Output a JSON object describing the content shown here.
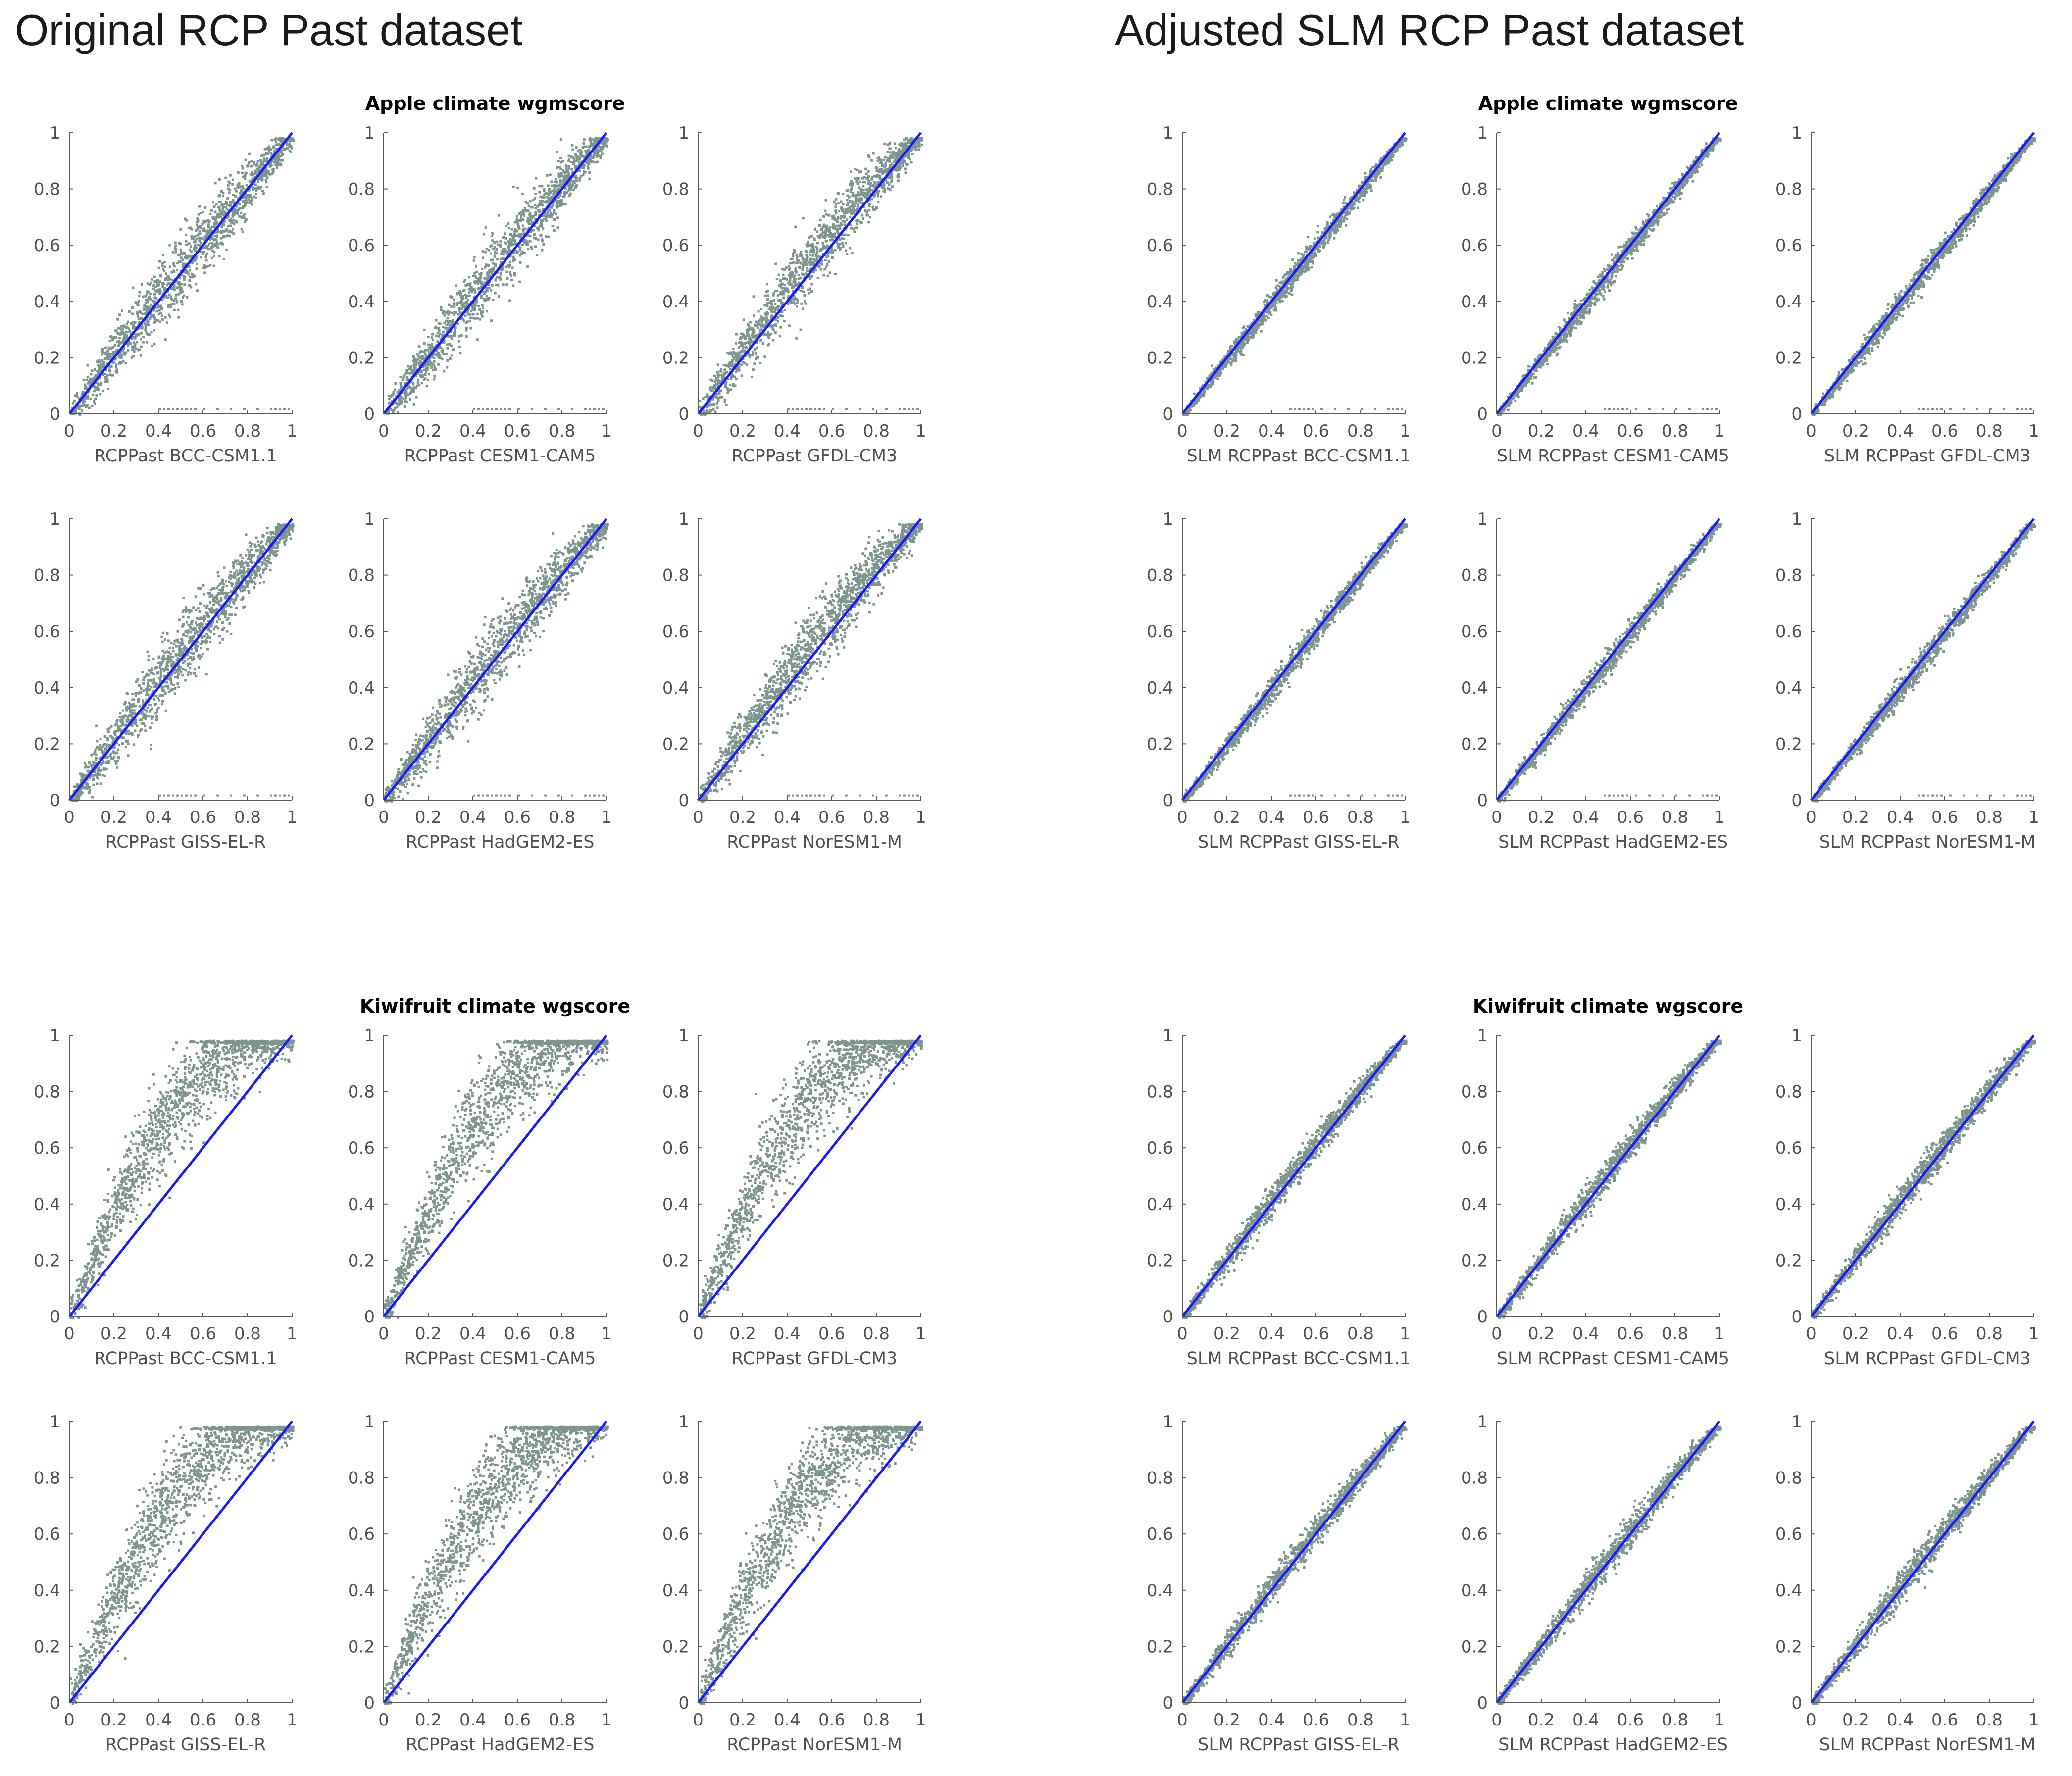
{
  "headings": {
    "left": "Original RCP Past dataset",
    "right": "Adjusted SLM RCP Past dataset"
  },
  "colors": {
    "scatter": "#7e958e",
    "identity_line": "#1a1aff",
    "axis": "#5a5a5a",
    "tick_text": "#505050",
    "title_text": "#000000"
  },
  "chart_data": [
    {
      "type": "scatter",
      "panel": "Original RCP Past dataset",
      "group_title": "Apple climate wgmscore",
      "charts": [
        {
          "xlabel": "RCPPast BCC-CSM1.1",
          "spread": 0.06,
          "curve": 0.02
        },
        {
          "xlabel": "RCPPast CESM1-CAM5",
          "spread": 0.06,
          "curve": 0.03
        },
        {
          "xlabel": "RCPPast GFDL-CM3",
          "spread": 0.06,
          "curve": 0.05
        },
        {
          "xlabel": "RCPPast GISS-EL-R",
          "spread": 0.06,
          "curve": 0.03
        },
        {
          "xlabel": "RCPPast HadGEM2-ES",
          "spread": 0.06,
          "curve": 0.03
        },
        {
          "xlabel": "RCPPast NorESM1-M",
          "spread": 0.06,
          "curve": 0.05
        }
      ],
      "outlier_row": {
        "y": 0.02,
        "x": [
          0.4,
          0.42,
          0.44,
          0.46,
          0.48,
          0.5,
          0.52,
          0.54,
          0.56,
          0.6,
          0.66,
          0.72,
          0.78,
          0.84,
          0.9,
          0.92,
          0.94,
          0.96,
          0.98
        ]
      },
      "xlim": [
        0,
        1
      ],
      "ylim": [
        0,
        1
      ],
      "ticks": [
        "0",
        "0.2",
        "0.4",
        "0.6",
        "0.8",
        "1"
      ],
      "yticks": [
        "0",
        "0.2",
        "0.4",
        "0.6",
        "0.8",
        "1"
      ],
      "identity_line": true
    },
    {
      "type": "scatter",
      "panel": "Adjusted SLM RCP Past dataset",
      "group_title": "Apple climate wgmscore",
      "charts": [
        {
          "xlabel": "SLM RCPPast BCC-CSM1.1",
          "spread": 0.022,
          "curve": 0.0
        },
        {
          "xlabel": "SLM RCPPast CESM1-CAM5",
          "spread": 0.022,
          "curve": 0.0
        },
        {
          "xlabel": "SLM RCPPast GFDL-CM3",
          "spread": 0.022,
          "curve": 0.0
        },
        {
          "xlabel": "SLM RCPPast GISS-EL-R",
          "spread": 0.022,
          "curve": 0.0
        },
        {
          "xlabel": "SLM RCPPast HadGEM2-ES",
          "spread": 0.022,
          "curve": 0.0
        },
        {
          "xlabel": "SLM RCPPast NorESM1-M",
          "spread": 0.022,
          "curve": 0.0
        }
      ],
      "outlier_row": {
        "y": 0.02,
        "x": [
          0.48,
          0.5,
          0.52,
          0.54,
          0.56,
          0.58,
          0.62,
          0.68,
          0.74,
          0.8,
          0.86,
          0.92,
          0.94,
          0.96,
          0.98
        ]
      },
      "xlim": [
        0,
        1
      ],
      "ylim": [
        0,
        1
      ],
      "ticks": [
        "0",
        "0.2",
        "0.4",
        "0.6",
        "0.8",
        "1"
      ],
      "yticks": [
        "0",
        "0.2",
        "0.4",
        "0.6",
        "0.8",
        "1"
      ],
      "identity_line": true
    },
    {
      "type": "scatter",
      "panel": "Original RCP Past dataset",
      "group_title": "Kiwifruit climate wgscore",
      "charts": [
        {
          "xlabel": "RCPPast BCC-CSM1.1",
          "spread": 0.09,
          "curve": 0.28
        },
        {
          "xlabel": "RCPPast CESM1-CAM5",
          "spread": 0.09,
          "curve": 0.28
        },
        {
          "xlabel": "RCPPast GFDL-CM3",
          "spread": 0.09,
          "curve": 0.28
        },
        {
          "xlabel": "RCPPast GISS-EL-R",
          "spread": 0.09,
          "curve": 0.28
        },
        {
          "xlabel": "RCPPast HadGEM2-ES",
          "spread": 0.09,
          "curve": 0.28
        },
        {
          "xlabel": "RCPPast NorESM1-M",
          "spread": 0.09,
          "curve": 0.28
        }
      ],
      "xlim": [
        0,
        1
      ],
      "ylim": [
        0,
        1
      ],
      "ticks": [
        "0",
        "0.2",
        "0.4",
        "0.6",
        "0.8",
        "1"
      ],
      "yticks": [
        "0",
        "0.2",
        "0.4",
        "0.6",
        "0.8",
        "1"
      ],
      "identity_line": true
    },
    {
      "type": "scatter",
      "panel": "Adjusted SLM RCP Past dataset",
      "group_title": "Kiwifruit climate wgscore",
      "charts": [
        {
          "xlabel": "SLM RCPPast BCC-CSM1.1",
          "spread": 0.028,
          "curve": 0.02
        },
        {
          "xlabel": "SLM RCPPast CESM1-CAM5",
          "spread": 0.028,
          "curve": 0.02
        },
        {
          "xlabel": "SLM RCPPast GFDL-CM3",
          "spread": 0.028,
          "curve": 0.02
        },
        {
          "xlabel": "SLM RCPPast GISS-EL-R",
          "spread": 0.028,
          "curve": 0.02
        },
        {
          "xlabel": "SLM RCPPast HadGEM2-ES",
          "spread": 0.028,
          "curve": 0.02
        },
        {
          "xlabel": "SLM RCPPast NorESM1-M",
          "spread": 0.028,
          "curve": 0.02
        }
      ],
      "xlim": [
        0,
        1
      ],
      "ylim": [
        0,
        1
      ],
      "ticks": [
        "0",
        "0.2",
        "0.4",
        "0.6",
        "0.8",
        "1"
      ],
      "yticks": [
        "0",
        "0.2",
        "0.4",
        "0.6",
        "0.8",
        "1"
      ],
      "identity_line": true
    }
  ]
}
